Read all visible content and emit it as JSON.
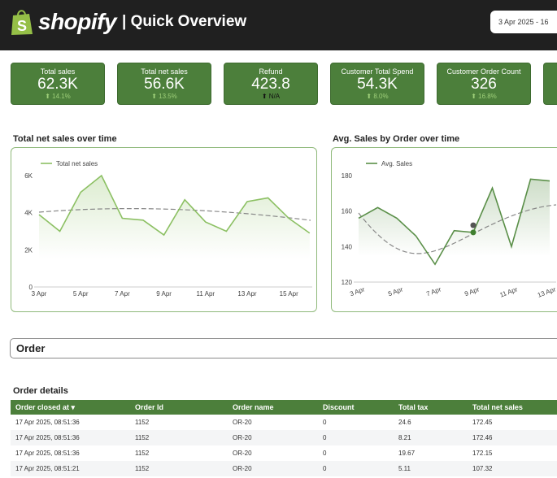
{
  "header": {
    "brand": "shopify",
    "title": "| Quick Overview",
    "date_range": "3 Apr 2025 - 16"
  },
  "kpis": [
    {
      "label": "Total sales",
      "value": "62.3K",
      "delta": "⬆ 14.1%"
    },
    {
      "label": "Total net sales",
      "value": "56.6K",
      "delta": "⬆ 13.5%"
    },
    {
      "label": "Refund",
      "value": "423.8",
      "delta": "⬆ N/A"
    },
    {
      "label": "Customer Total Spend",
      "value": "54.3K",
      "delta": "⬆ 8.0%"
    },
    {
      "label": "Customer Order Count",
      "value": "326",
      "delta": "⬆ 16.8%"
    }
  ],
  "colors": {
    "brand_green": "#4c7f3b",
    "line1": "#8cc063",
    "line2": "#5a8f48"
  },
  "chart_data": [
    {
      "type": "area",
      "title": "Total net sales over time",
      "series": [
        {
          "name": "Total net sales",
          "values": [
            3900,
            3000,
            5100,
            6000,
            3700,
            3600,
            2800,
            4700,
            3500,
            3000,
            4600,
            4800,
            3700,
            2900
          ]
        }
      ],
      "x": [
        "3 Apr",
        "4 Apr",
        "5 Apr",
        "6 Apr",
        "7 Apr",
        "8 Apr",
        "9 Apr",
        "10 Apr",
        "11 Apr",
        "12 Apr",
        "13 Apr",
        "14 Apr",
        "15 Apr",
        "16 Apr"
      ],
      "xticks": [
        "3 Apr",
        "5 Apr",
        "7 Apr",
        "9 Apr",
        "11 Apr",
        "13 Apr",
        "15 Apr"
      ],
      "yticks": [
        "0",
        "2K",
        "4K",
        "6K"
      ],
      "ylim": [
        0,
        6000
      ],
      "trendline": "dashed",
      "legend": "top-left"
    },
    {
      "type": "area",
      "title": "Avg. Sales by Order over time",
      "series": [
        {
          "name": "Avg. Sales",
          "values": [
            156,
            162,
            156,
            146,
            130,
            149,
            148,
            173,
            140,
            178,
            177
          ]
        }
      ],
      "x": [
        "3 Apr",
        "4 Apr",
        "5 Apr",
        "6 Apr",
        "7 Apr",
        "8 Apr",
        "9 Apr",
        "10 Apr",
        "11 Apr",
        "12 Apr",
        "13 Apr"
      ],
      "xticks": [
        "3 Apr",
        "5 Apr",
        "7 Apr",
        "9 Apr",
        "11 Apr",
        "13 Apr"
      ],
      "yticks": [
        "120",
        "140",
        "160",
        "180"
      ],
      "ylim": [
        120,
        180
      ],
      "trendline": "dashed",
      "legend": "top-left"
    }
  ],
  "order_section": "Order",
  "table": {
    "title": "Order details",
    "columns": [
      "Order closed at ▾",
      "Order Id",
      "Order name",
      "Discount",
      "Total tax",
      "Total net sales"
    ],
    "rows": [
      [
        "17 Apr 2025, 08:51:36",
        "1152",
        "OR-20",
        "0",
        "24.6",
        "172.45"
      ],
      [
        "17 Apr 2025, 08:51:36",
        "1152",
        "OR-20",
        "0",
        "8.21",
        "172.46"
      ],
      [
        "17 Apr 2025, 08:51:36",
        "1152",
        "OR-20",
        "0",
        "19.67",
        "172.15"
      ],
      [
        "17 Apr 2025, 08:51:21",
        "1152",
        "OR-20",
        "0",
        "5.11",
        "107.32"
      ]
    ]
  }
}
